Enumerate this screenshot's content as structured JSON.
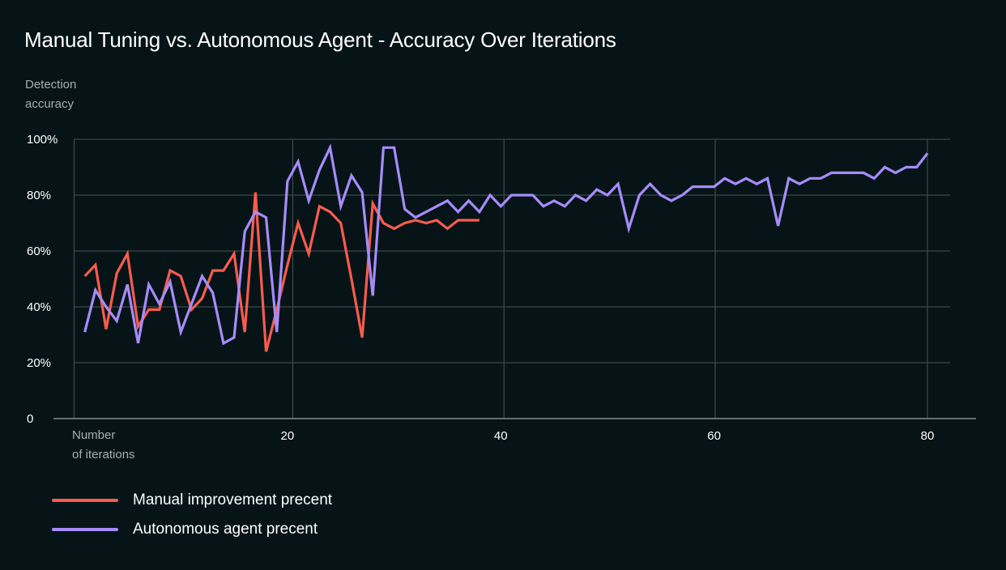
{
  "chart_data": {
    "type": "line",
    "title": "Manual Tuning vs. Autonomous Agent - Accuracy Over Iterations",
    "ylabel_lines": [
      "Detection",
      "accuracy"
    ],
    "xlabel_lines": [
      "Number",
      "of iterations"
    ],
    "xlim": [
      0,
      82
    ],
    "ylim": [
      0,
      100
    ],
    "x_ticks": [
      20,
      40,
      60,
      80
    ],
    "x_tick_labels": [
      "20",
      "40",
      "60",
      "80"
    ],
    "y_ticks": [
      0,
      20,
      40,
      60,
      80,
      100
    ],
    "y_tick_labels": [
      "0",
      "20%",
      "40%",
      "60%",
      "80%",
      "100%"
    ],
    "grid": "on",
    "legend_position": "bottom-left",
    "series": [
      {
        "name": "Manual improvement precent",
        "color": "#f85c4c",
        "x": [
          1,
          2,
          3,
          4,
          5,
          6,
          7,
          8,
          9,
          10,
          11,
          12,
          13,
          14,
          15,
          16,
          17,
          18,
          19,
          20,
          21,
          22,
          23,
          24,
          25,
          26,
          27,
          28,
          29,
          30,
          31,
          32,
          33,
          34,
          35,
          36,
          37,
          38
        ],
        "values": [
          51,
          55,
          32,
          52,
          59,
          33,
          39,
          39,
          53,
          51,
          39,
          43,
          53,
          53,
          59,
          31,
          81,
          24,
          39,
          55,
          70,
          59,
          76,
          74,
          70,
          50,
          29,
          77,
          70,
          68,
          70,
          71,
          70,
          71,
          68,
          71,
          71,
          71
        ]
      },
      {
        "name": "Autonomous agent precent",
        "color": "#a78bfa",
        "x": [
          1,
          2,
          3,
          4,
          5,
          6,
          7,
          8,
          9,
          10,
          11,
          12,
          13,
          14,
          15,
          16,
          17,
          18,
          19,
          20,
          21,
          22,
          23,
          24,
          25,
          26,
          27,
          28,
          29,
          30,
          31,
          32,
          33,
          34,
          35,
          36,
          37,
          38,
          39,
          40,
          41,
          42,
          43,
          44,
          45,
          46,
          47,
          48,
          49,
          50,
          51,
          52,
          53,
          54,
          55,
          56,
          57,
          58,
          59,
          60,
          61,
          62,
          63,
          64,
          65,
          66,
          67,
          68,
          69,
          70,
          71,
          72,
          73,
          74,
          75,
          76,
          77,
          78,
          79,
          80
        ],
        "values": [
          31,
          46,
          40,
          35,
          48,
          27,
          48,
          41,
          49,
          31,
          41,
          51,
          45,
          27,
          29,
          67,
          74,
          72,
          31,
          85,
          92,
          78,
          89,
          97,
          76,
          87,
          81,
          44,
          97,
          97,
          75,
          72,
          74,
          76,
          78,
          74,
          78,
          74,
          80,
          76,
          80,
          80,
          80,
          76,
          78,
          76,
          80,
          78,
          82,
          80,
          84,
          68,
          80,
          84,
          80,
          78,
          80,
          83,
          83,
          83,
          86,
          84,
          86,
          84,
          86,
          69,
          86,
          84,
          86,
          86,
          88,
          88,
          88,
          88,
          86,
          90,
          88,
          90,
          90,
          95
        ]
      }
    ]
  }
}
